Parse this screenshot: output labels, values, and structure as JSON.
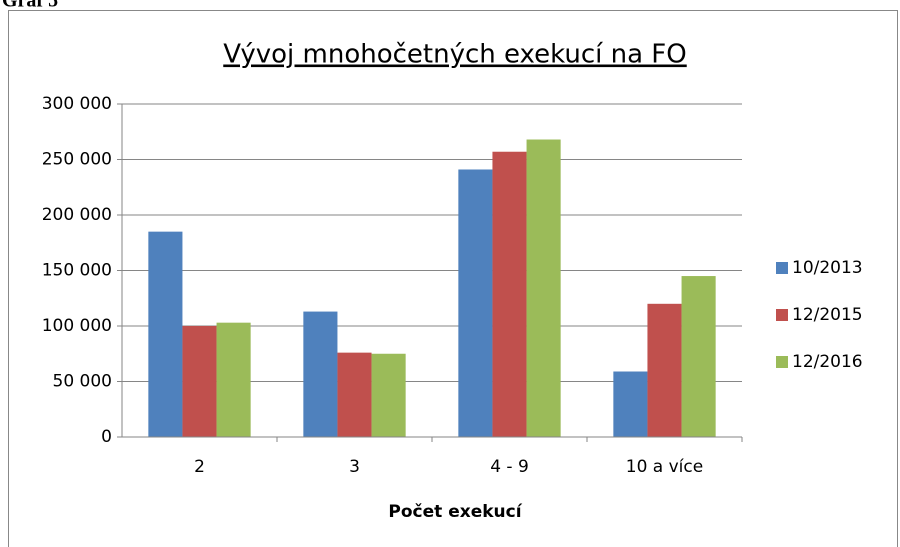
{
  "caption": "Graf 5",
  "chart_data": {
    "type": "bar",
    "title": "Vývoj mnohočetných exekucí na FO",
    "x_label": "Počet exekucí",
    "categories": [
      "2",
      "3",
      "4 - 9",
      "10 a více"
    ],
    "series": [
      {
        "name": "10/2013",
        "color": "#4f81bd",
        "values": [
          185000,
          113000,
          241000,
          59000
        ]
      },
      {
        "name": "12/2015",
        "color": "#c0504d",
        "values": [
          100000,
          76000,
          257000,
          120000
        ]
      },
      {
        "name": "12/2016",
        "color": "#9bbb59",
        "values": [
          103000,
          75000,
          268000,
          145000
        ]
      }
    ],
    "ylim": [
      0,
      300000
    ],
    "yticks": [
      0,
      {
        "value": 50000,
        "label": "50 000"
      },
      {
        "value": 100000,
        "label": "100 000"
      },
      {
        "value": 150000,
        "label": "150 000"
      },
      {
        "value": 200000,
        "label": "200 000"
      },
      {
        "value": 250000,
        "label": "250 000"
      },
      {
        "value": 300000,
        "label": "300 000"
      }
    ],
    "grid": true,
    "legend": "right"
  }
}
